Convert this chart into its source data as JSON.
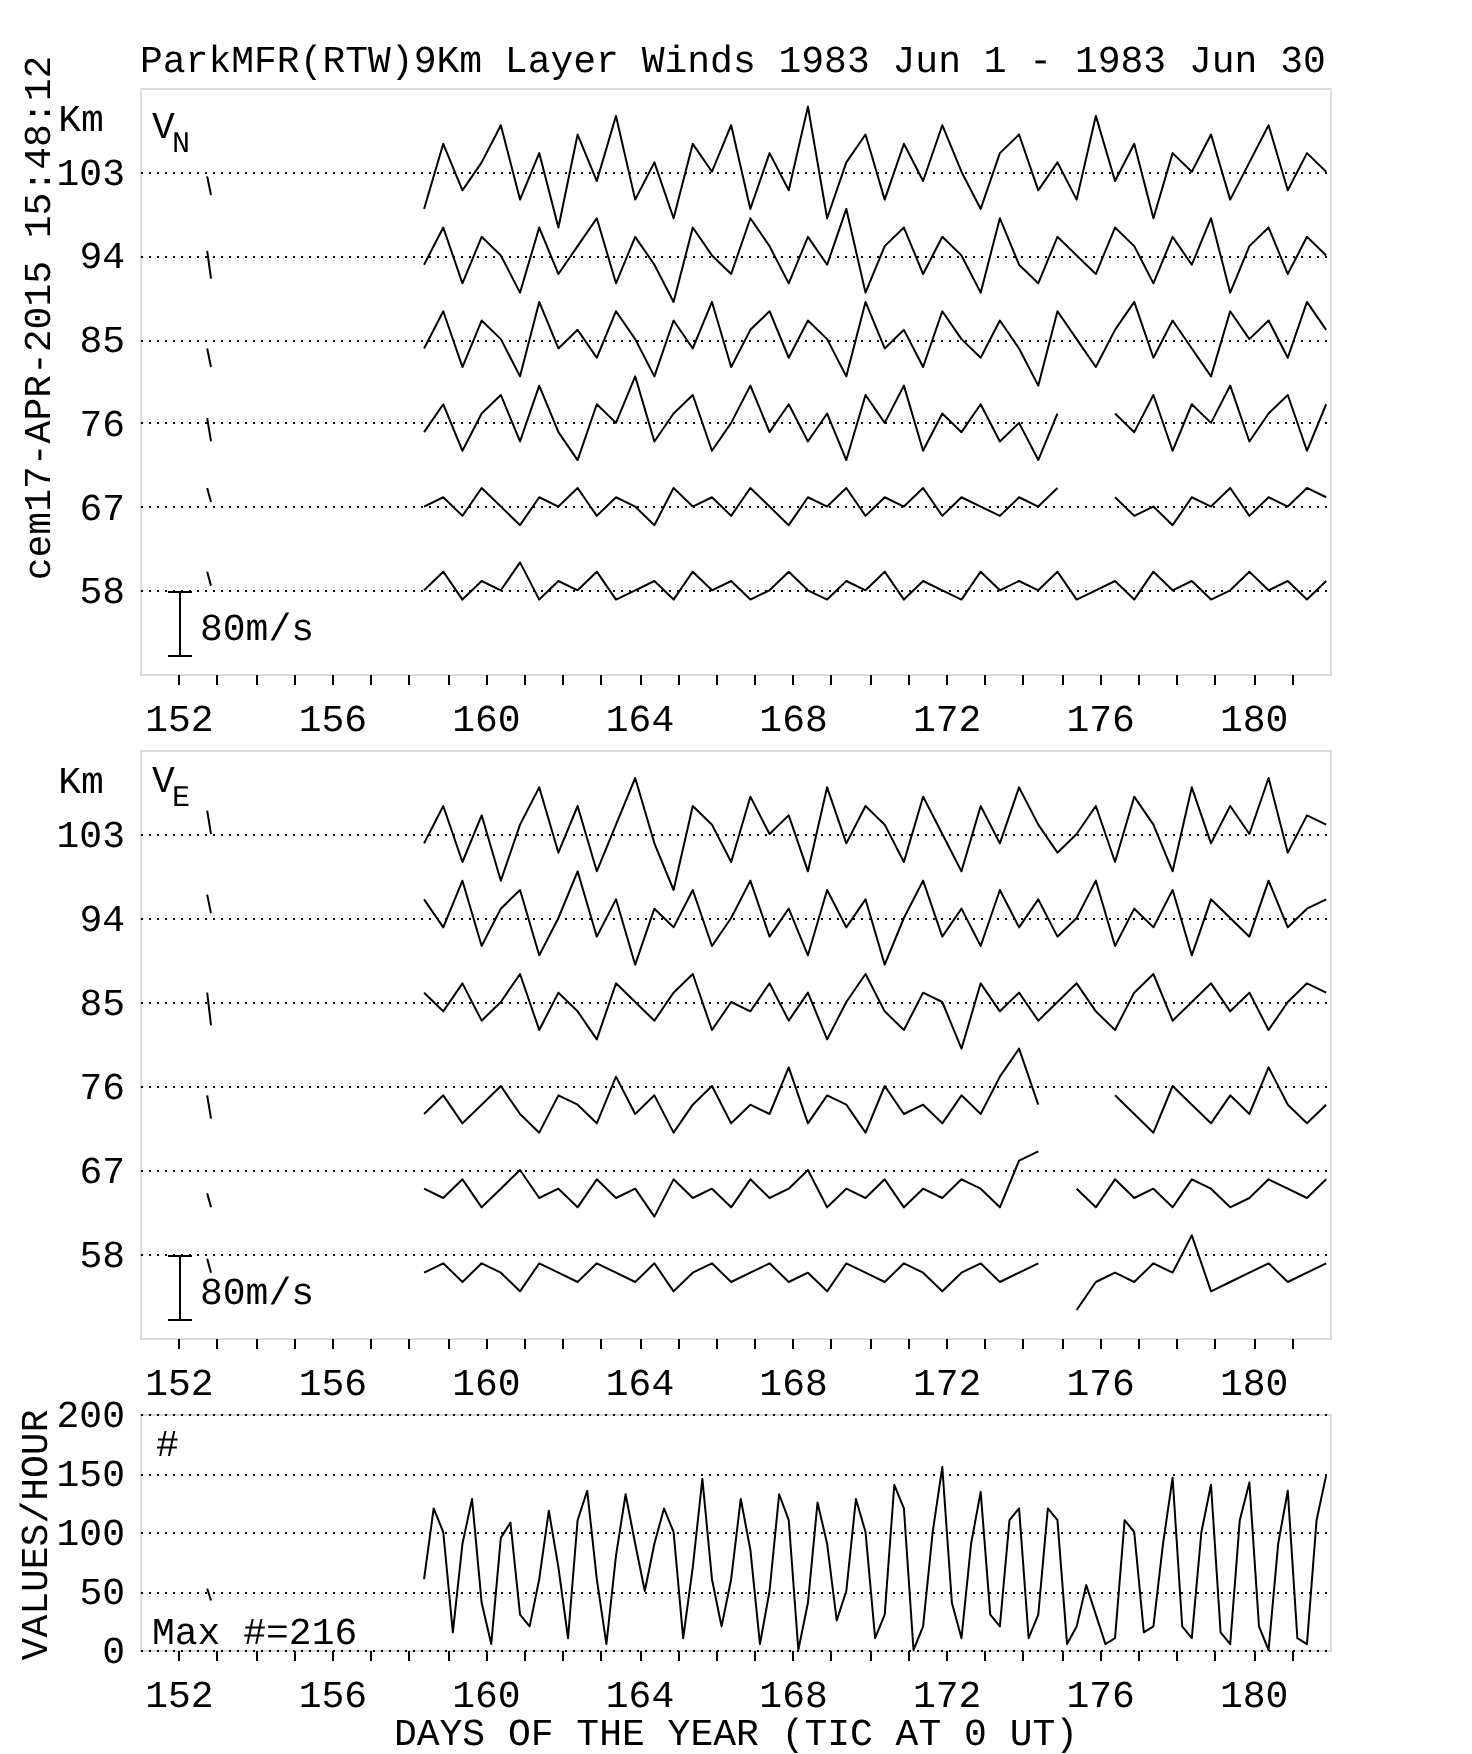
{
  "chart_data": [
    {
      "type": "line",
      "title": "ParkMFR(RTW)9Km Layer Winds 1983 Jun  1 - 1983 Jun 30",
      "ylabel": "Km",
      "annotations": [
        "V$_{N}$",
        "80m/s",
        "cem17-APR-2015 15:48:12"
      ],
      "x": [
        152.75,
        152.85,
        155,
        158.4,
        158.9,
        159.4,
        159.9,
        160.4,
        160.9,
        161.4,
        161.9,
        162.4,
        162.9,
        163.4,
        163.9,
        164.4,
        164.9,
        165.4,
        165.9,
        166.4,
        166.9,
        167.4,
        167.9,
        168.4,
        168.9,
        169.4,
        169.9,
        170.4,
        170.9,
        171.4,
        171.9,
        172.4,
        172.9,
        173.4,
        173.9,
        174.4,
        174.9,
        175.4,
        175.9,
        176.4,
        176.9,
        177.4,
        177.9,
        178.4,
        178.9,
        179.4,
        179.9,
        180.4,
        180.9,
        181.4,
        181.9
      ],
      "xlim": [
        151,
        182
      ],
      "xticks": [
        152,
        {
          "value": 153,
          "label": null
        },
        {
          "value": 154,
          "label": null
        },
        {
          "value": 155,
          "label": null
        },
        156,
        {
          "value": 157,
          "label": null
        },
        {
          "value": 158,
          "label": null
        },
        {
          "value": 159,
          "label": null
        },
        160,
        {
          "value": 161,
          "label": null
        },
        {
          "value": 162,
          "label": null
        },
        {
          "value": 163,
          "label": null
        },
        164,
        {
          "value": 165,
          "label": null
        },
        {
          "value": 166,
          "label": null
        },
        {
          "value": 167,
          "label": null
        },
        168,
        {
          "value": 169,
          "label": null
        },
        {
          "value": 170,
          "label": null
        },
        {
          "value": 171,
          "label": null
        },
        172,
        {
          "value": 173,
          "label": null
        },
        {
          "value": 174,
          "label": null
        },
        {
          "value": 175,
          "label": null
        },
        176,
        {
          "value": 177,
          "label": null
        },
        {
          "value": 178,
          "label": null
        },
        {
          "value": 179,
          "label": null
        },
        180,
        {
          "value": 181,
          "label": null
        }
      ],
      "ylim": [
        49,
        112
      ],
      "yticks": [
        58,
        67,
        76,
        85,
        94,
        103
      ],
      "grid": "y",
      "line_style": "solid",
      "series": [
        {
          "color": "#000000",
          "values": [
            102.5,
            100.5,
            null,
            99,
            106,
            101,
            104,
            108,
            100,
            105,
            97,
            107,
            102,
            109,
            100,
            104,
            98,
            106,
            103,
            108,
            99,
            105,
            101,
            110,
            98,
            104,
            107,
            100,
            106,
            102,
            108,
            103,
            99,
            105,
            107,
            101,
            104,
            100,
            109,
            102,
            106,
            98,
            105,
            103,
            107,
            100,
            104,
            108,
            101,
            105,
            103
          ]
        },
        {
          "color": "#000000",
          "values": [
            94.5,
            91.5,
            null,
            93,
            97,
            91,
            96,
            94,
            90,
            97,
            92,
            95,
            98,
            91,
            96,
            93,
            89,
            97,
            94,
            92,
            98,
            95,
            91,
            96,
            93,
            99,
            90,
            95,
            97,
            92,
            96,
            94,
            90,
            98,
            93,
            91,
            96,
            94,
            92,
            97,
            95,
            91,
            96,
            93,
            98,
            90,
            95,
            97,
            92,
            96,
            94
          ]
        },
        {
          "color": "#000000",
          "values": [
            84,
            82,
            null,
            84,
            88,
            82,
            87,
            85,
            81,
            89,
            84,
            86,
            83,
            88,
            85,
            81,
            87,
            84,
            89,
            82,
            86,
            88,
            83,
            87,
            85,
            81,
            89,
            84,
            86,
            82,
            88,
            85,
            83,
            87,
            84,
            80,
            88,
            85,
            82,
            86,
            89,
            83,
            87,
            84,
            81,
            88,
            85,
            87,
            83,
            89,
            86
          ]
        },
        {
          "color": "#000000",
          "values": [
            76.5,
            74,
            null,
            75,
            78,
            73,
            77,
            79,
            74,
            80,
            75,
            72,
            78,
            76,
            81,
            74,
            77,
            79,
            73,
            76,
            80,
            75,
            78,
            74,
            77,
            72,
            79,
            76,
            80,
            73,
            77,
            75,
            78,
            74,
            76,
            72,
            77,
            null,
            null,
            77,
            75,
            79,
            73,
            78,
            76,
            80,
            74,
            77,
            79,
            73,
            78
          ]
        },
        {
          "color": "#000000",
          "values": [
            69,
            67.5,
            null,
            67,
            68,
            66,
            69,
            67,
            65,
            68,
            67,
            69,
            66,
            68,
            67,
            65,
            69,
            67,
            68,
            66,
            69,
            67,
            65,
            68,
            67,
            69,
            66,
            68,
            67,
            69,
            66,
            68,
            67,
            66,
            68,
            67,
            69,
            null,
            null,
            68,
            66,
            67,
            65,
            68,
            67,
            69,
            66,
            68,
            67,
            69,
            68
          ]
        },
        {
          "color": "#000000",
          "values": [
            60,
            58.5,
            null,
            58,
            60,
            57,
            59,
            58,
            61,
            57,
            59,
            58,
            60,
            57,
            58,
            59,
            57,
            60,
            58,
            59,
            57,
            58,
            60,
            58,
            57,
            59,
            58,
            60,
            57,
            59,
            58,
            57,
            60,
            58,
            59,
            58,
            60,
            57,
            58,
            59,
            57,
            60,
            58,
            59,
            57,
            58,
            60,
            58,
            59,
            57,
            59
          ]
        }
      ]
    },
    {
      "type": "line",
      "ylabel": "Km",
      "annotations": [
        "V$_{E}$",
        "80m/s"
      ],
      "x": [
        152.75,
        152.85,
        155,
        158.4,
        158.9,
        159.4,
        159.9,
        160.4,
        160.9,
        161.4,
        161.9,
        162.4,
        162.9,
        163.4,
        163.9,
        164.4,
        164.9,
        165.4,
        165.9,
        166.4,
        166.9,
        167.4,
        167.9,
        168.4,
        168.9,
        169.4,
        169.9,
        170.4,
        170.9,
        171.4,
        171.9,
        172.4,
        172.9,
        173.4,
        173.9,
        174.4,
        174.9,
        175.4,
        175.9,
        176.4,
        176.9,
        177.4,
        177.9,
        178.4,
        178.9,
        179.4,
        179.9,
        180.4,
        180.9,
        181.4,
        181.9
      ],
      "xlim": [
        151,
        182
      ],
      "xticks": [
        152,
        {
          "value": 153,
          "label": null
        },
        {
          "value": 154,
          "label": null
        },
        {
          "value": 155,
          "label": null
        },
        156,
        {
          "value": 157,
          "label": null
        },
        {
          "value": 158,
          "label": null
        },
        {
          "value": 159,
          "label": null
        },
        160,
        {
          "value": 161,
          "label": null
        },
        {
          "value": 162,
          "label": null
        },
        {
          "value": 163,
          "label": null
        },
        164,
        {
          "value": 165,
          "label": null
        },
        {
          "value": 166,
          "label": null
        },
        {
          "value": 167,
          "label": null
        },
        168,
        {
          "value": 169,
          "label": null
        },
        {
          "value": 170,
          "label": null
        },
        {
          "value": 171,
          "label": null
        },
        172,
        {
          "value": 173,
          "label": null
        },
        {
          "value": 174,
          "label": null
        },
        {
          "value": 175,
          "label": null
        },
        176,
        {
          "value": 177,
          "label": null
        },
        {
          "value": 178,
          "label": null
        },
        {
          "value": 179,
          "label": null
        },
        180,
        {
          "value": 181,
          "label": null
        }
      ],
      "ylim": [
        49,
        112
      ],
      "yticks": [
        58,
        67,
        76,
        85,
        94,
        103
      ],
      "grid": "y",
      "line_style": "solid",
      "series": [
        {
          "color": "#000000",
          "values": [
            105.5,
            103,
            null,
            102,
            106,
            100,
            105,
            98,
            104,
            108,
            101,
            106,
            99,
            104,
            109,
            102,
            97,
            106,
            104,
            100,
            107,
            103,
            105,
            99,
            108,
            102,
            106,
            104,
            100,
            107,
            103,
            99,
            106,
            102,
            108,
            104,
            101,
            103,
            106,
            100,
            107,
            104,
            99,
            108,
            102,
            106,
            103,
            109,
            101,
            105,
            104
          ]
        },
        {
          "color": "#000000",
          "values": [
            96.5,
            94.5,
            null,
            96,
            93,
            98,
            91,
            95,
            97,
            90,
            94,
            99,
            92,
            96,
            89,
            95,
            93,
            97,
            91,
            94,
            98,
            92,
            95,
            90,
            97,
            93,
            96,
            89,
            94,
            98,
            92,
            95,
            91,
            97,
            93,
            96,
            92,
            94,
            98,
            91,
            95,
            93,
            97,
            90,
            96,
            94,
            92,
            98,
            93,
            95,
            96
          ]
        },
        {
          "color": "#000000",
          "values": [
            86,
            82.5,
            null,
            86,
            84,
            87,
            83,
            85,
            88,
            82,
            86,
            84,
            81,
            87,
            85,
            83,
            86,
            88,
            82,
            85,
            84,
            87,
            83,
            86,
            81,
            85,
            88,
            84,
            82,
            86,
            85,
            80,
            87,
            84,
            86,
            83,
            85,
            87,
            84,
            82,
            86,
            88,
            83,
            85,
            87,
            84,
            86,
            82,
            85,
            87,
            86
          ]
        },
        {
          "color": "#000000",
          "values": [
            75,
            72.5,
            null,
            73,
            75,
            72,
            74,
            76,
            73,
            71,
            75,
            74,
            72,
            77,
            73,
            75,
            71,
            74,
            76,
            72,
            74,
            73,
            78,
            72,
            75,
            74,
            71,
            76,
            73,
            74,
            72,
            75,
            73,
            77,
            80,
            74,
            null,
            null,
            null,
            75,
            73,
            71,
            76,
            74,
            72,
            75,
            73,
            78,
            74,
            72,
            74
          ]
        },
        {
          "color": "#000000",
          "values": [
            64.5,
            63,
            null,
            65,
            64,
            66,
            63,
            65,
            67,
            64,
            65,
            63,
            66,
            64,
            65,
            62,
            66,
            64,
            65,
            63,
            66,
            64,
            65,
            67,
            63,
            65,
            64,
            66,
            63,
            65,
            64,
            66,
            65,
            63,
            68,
            69,
            null,
            65,
            63,
            66,
            64,
            65,
            63,
            66,
            65,
            63,
            64,
            66,
            65,
            64,
            66
          ]
        },
        {
          "color": "#000000",
          "values": [
            57.5,
            56,
            null,
            56,
            57,
            55,
            57,
            56,
            54,
            57,
            56,
            55,
            57,
            56,
            55,
            57,
            54,
            56,
            57,
            55,
            56,
            57,
            55,
            56,
            54,
            57,
            56,
            55,
            57,
            56,
            54,
            56,
            57,
            55,
            56,
            57,
            null,
            52,
            55,
            56,
            55,
            57,
            56,
            60,
            54,
            55,
            56,
            57,
            55,
            56,
            57
          ]
        }
      ]
    },
    {
      "type": "line",
      "ylabel": "VALUES/HOUR",
      "xlabel": "DAYS OF THE YEAR (TIC AT 0 UT)",
      "annotations": [
        "#",
        "Max #=216"
      ],
      "x": [
        152.75,
        152.85,
        155,
        158.4,
        158.65,
        158.9,
        159.15,
        159.4,
        159.65,
        159.9,
        160.15,
        160.4,
        160.65,
        160.9,
        161.15,
        161.4,
        161.65,
        161.9,
        162.15,
        162.4,
        162.65,
        162.9,
        163.15,
        163.4,
        163.65,
        163.9,
        164.15,
        164.4,
        164.65,
        164.9,
        165.15,
        165.4,
        165.65,
        165.9,
        166.15,
        166.4,
        166.65,
        166.9,
        167.15,
        167.4,
        167.65,
        167.9,
        168.15,
        168.4,
        168.65,
        168.9,
        169.15,
        169.4,
        169.65,
        169.9,
        170.15,
        170.4,
        170.65,
        170.9,
        171.15,
        171.4,
        171.65,
        171.9,
        172.15,
        172.4,
        172.65,
        172.9,
        173.15,
        173.4,
        173.65,
        173.9,
        174.15,
        174.4,
        174.65,
        174.9,
        175.15,
        175.4,
        175.65,
        175.9,
        176.15,
        176.4,
        176.65,
        176.9,
        177.15,
        177.4,
        177.65,
        177.9,
        178.15,
        178.4,
        178.65,
        178.9,
        179.15,
        179.4,
        179.65,
        179.9,
        180.15,
        180.4,
        180.65,
        180.9,
        181.15,
        181.4,
        181.65,
        181.9
      ],
      "xlim": [
        151,
        182
      ],
      "xticks": [
        152,
        {
          "value": 153,
          "label": null
        },
        {
          "value": 154,
          "label": null
        },
        {
          "value": 155,
          "label": null
        },
        156,
        {
          "value": 157,
          "label": null
        },
        {
          "value": 158,
          "label": null
        },
        {
          "value": 159,
          "label": null
        },
        160,
        {
          "value": 161,
          "label": null
        },
        {
          "value": 162,
          "label": null
        },
        {
          "value": 163,
          "label": null
        },
        164,
        {
          "value": 165,
          "label": null
        },
        {
          "value": 166,
          "label": null
        },
        {
          "value": 167,
          "label": null
        },
        168,
        {
          "value": 169,
          "label": null
        },
        {
          "value": 170,
          "label": null
        },
        {
          "value": 171,
          "label": null
        },
        172,
        {
          "value": 173,
          "label": null
        },
        {
          "value": 174,
          "label": null
        },
        {
          "value": 175,
          "label": null
        },
        176,
        {
          "value": 177,
          "label": null
        },
        {
          "value": 178,
          "label": null
        },
        {
          "value": 179,
          "label": null
        },
        180,
        {
          "value": 181,
          "label": null
        }
      ],
      "ylim": [
        0,
        200
      ],
      "yticks": [
        0,
        50,
        100,
        150,
        200
      ],
      "grid": "y",
      "line_style": "solid",
      "series": [
        {
          "color": "#000000",
          "values": [
            52,
            42,
            null,
            60,
            120,
            100,
            15,
            90,
            128,
            40,
            5,
            95,
            108,
            30,
            20,
            60,
            118,
            70,
            10,
            110,
            135,
            60,
            5,
            80,
            132,
            90,
            50,
            90,
            120,
            100,
            10,
            70,
            145,
            60,
            20,
            60,
            128,
            85,
            5,
            50,
            132,
            110,
            0,
            40,
            125,
            90,
            25,
            50,
            128,
            100,
            10,
            30,
            140,
            120,
            0,
            20,
            100,
            155,
            40,
            10,
            90,
            134,
            30,
            20,
            110,
            120,
            10,
            30,
            120,
            110,
            5,
            20,
            55,
            30,
            5,
            10,
            110,
            100,
            15,
            20,
            90,
            146,
            20,
            10,
            100,
            140,
            15,
            5,
            110,
            142,
            20,
            0,
            90,
            135,
            10,
            5,
            110,
            148
          ]
        }
      ]
    }
  ]
}
